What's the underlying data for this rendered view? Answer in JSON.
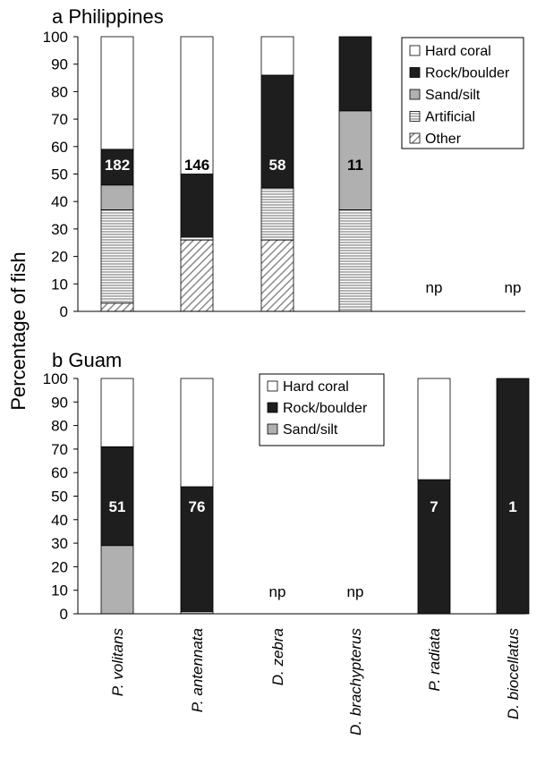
{
  "chart_data": [
    {
      "type": "bar",
      "stacked": true,
      "title": "a  Philippines",
      "ylabel": "Percentage of fish",
      "ylim": [
        0,
        100
      ],
      "yticks": [
        "0",
        "10",
        "20",
        "30",
        "40",
        "50",
        "60",
        "70",
        "80",
        "90",
        "100"
      ],
      "categories": [
        "P. volitans",
        "P. antennata",
        "D. zebra",
        "D. brachypterus",
        "P. radiata",
        "D. biocellatus"
      ],
      "legend": {
        "position": "top-right",
        "entries": [
          "Hard coral",
          "Rock/boulder",
          "Sand/silt",
          "Artificial",
          "Other"
        ]
      },
      "series": [
        {
          "name": "Other",
          "values": [
            3,
            26,
            26,
            0,
            null,
            null
          ]
        },
        {
          "name": "Artificial",
          "values": [
            34,
            1,
            19,
            37,
            null,
            null
          ]
        },
        {
          "name": "Sand/silt",
          "values": [
            9,
            0,
            0,
            36,
            null,
            null
          ]
        },
        {
          "name": "Rock/boulder",
          "values": [
            13,
            23,
            41,
            27,
            null,
            null
          ]
        },
        {
          "name": "Hard coral",
          "values": [
            41,
            50,
            14,
            0,
            null,
            null
          ]
        }
      ],
      "bar_labels": [
        "182",
        "146",
        "58",
        "11",
        "np",
        "np"
      ]
    },
    {
      "type": "bar",
      "stacked": true,
      "title": "b  Guam",
      "ylim": [
        0,
        100
      ],
      "yticks": [
        "0",
        "10",
        "20",
        "30",
        "40",
        "50",
        "60",
        "70",
        "80",
        "90",
        "100"
      ],
      "categories": [
        "P. volitans",
        "P. antennata",
        "D. zebra",
        "D. brachypterus",
        "P. radiata",
        "D. biocellatus"
      ],
      "legend": {
        "position": "top-center",
        "entries": [
          "Hard coral",
          "Rock/boulder",
          "Sand/silt"
        ]
      },
      "series": [
        {
          "name": "Sand/silt",
          "values": [
            29,
            1,
            null,
            null,
            0,
            0
          ]
        },
        {
          "name": "Rock/boulder",
          "values": [
            42,
            53,
            null,
            null,
            57,
            100
          ]
        },
        {
          "name": "Hard coral",
          "values": [
            29,
            46,
            null,
            null,
            43,
            0
          ]
        }
      ],
      "bar_labels": [
        "51",
        "76",
        "np",
        "np",
        "7",
        "1"
      ]
    }
  ]
}
